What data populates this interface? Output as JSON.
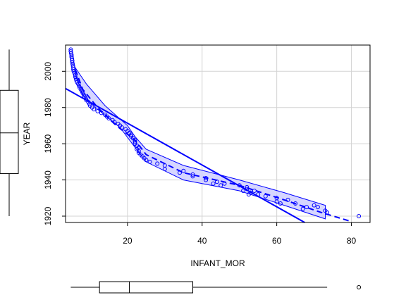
{
  "chart_data": {
    "type": "scatter",
    "title": "",
    "xlabel": "INFANT_MOR",
    "ylabel": "YEAR",
    "xlim": [
      3.4,
      85
    ],
    "ylim": [
      1916.5,
      2014.5
    ],
    "xticks": [
      20,
      40,
      60,
      80
    ],
    "yticks": [
      1920,
      1940,
      1960,
      1980,
      2000
    ],
    "grid": true,
    "colors": {
      "series": "#0000ff",
      "band_fill": "#ccccff",
      "grid": "#d3d3d3",
      "boxplot": "#000000"
    },
    "points": [
      [
        82,
        1920
      ],
      [
        73.5,
        1922
      ],
      [
        73,
        1923
      ],
      [
        70,
        1926
      ],
      [
        71,
        1925
      ],
      [
        68,
        1925
      ],
      [
        67,
        1924
      ],
      [
        65,
        1927
      ],
      [
        63,
        1929
      ],
      [
        61,
        1927
      ],
      [
        60,
        1928
      ],
      [
        60,
        1930
      ],
      [
        57,
        1931
      ],
      [
        55,
        1932
      ],
      [
        54,
        1934
      ],
      [
        53,
        1933
      ],
      [
        52.5,
        1932
      ],
      [
        52,
        1935
      ],
      [
        52,
        1936
      ],
      [
        51,
        1934
      ],
      [
        50,
        1937
      ],
      [
        46,
        1938
      ],
      [
        45,
        1937
      ],
      [
        44,
        1939
      ],
      [
        43,
        1938
      ],
      [
        41,
        1940
      ],
      [
        41,
        1941
      ],
      [
        37.5,
        1943
      ],
      [
        37.5,
        1942
      ],
      [
        35,
        1945
      ],
      [
        34,
        1944
      ],
      [
        30,
        1946
      ],
      [
        30,
        1948
      ],
      [
        28,
        1949
      ],
      [
        26,
        1950
      ],
      [
        25,
        1951
      ],
      [
        24.5,
        1952
      ],
      [
        24,
        1953
      ],
      [
        23.5,
        1954
      ],
      [
        23,
        1956
      ],
      [
        23,
        1955
      ],
      [
        22.5,
        1957
      ],
      [
        23,
        1958
      ],
      [
        22.5,
        1959
      ],
      [
        22,
        1960
      ],
      [
        22,
        1961
      ],
      [
        22,
        1962
      ],
      [
        21.5,
        1963
      ],
      [
        21,
        1964
      ],
      [
        21,
        1965
      ],
      [
        20.5,
        1966
      ],
      [
        20,
        1967
      ],
      [
        19.5,
        1968
      ],
      [
        18.5,
        1969
      ],
      [
        18,
        1970
      ],
      [
        17.5,
        1971
      ],
      [
        16.5,
        1972
      ],
      [
        16,
        1973
      ],
      [
        15,
        1974
      ],
      [
        14.5,
        1975
      ],
      [
        14,
        1976
      ],
      [
        13,
        1977
      ],
      [
        12,
        1978
      ],
      [
        11,
        1979
      ],
      [
        10.5,
        1980
      ],
      [
        10,
        1981
      ],
      [
        9.8,
        1982
      ],
      [
        9.5,
        1983
      ],
      [
        9,
        1984
      ],
      [
        8.8,
        1985
      ],
      [
        8.5,
        1986
      ],
      [
        8.3,
        1987
      ],
      [
        8,
        1988
      ],
      [
        7.8,
        1989
      ],
      [
        7.5,
        1990
      ],
      [
        7.2,
        1991
      ],
      [
        7,
        1992
      ],
      [
        6.8,
        1993
      ],
      [
        6.5,
        1994
      ],
      [
        6.3,
        1995
      ],
      [
        6.2,
        1996
      ],
      [
        6,
        1997
      ],
      [
        6,
        1998
      ],
      [
        5.8,
        1999
      ],
      [
        5.6,
        2000
      ],
      [
        5.5,
        2001
      ],
      [
        5.5,
        2002
      ],
      [
        5.4,
        2003
      ],
      [
        5.3,
        2004
      ],
      [
        5.2,
        2005
      ],
      [
        5.2,
        2006
      ],
      [
        5.1,
        2007
      ],
      [
        5,
        2008
      ],
      [
        5,
        2009
      ],
      [
        4.9,
        2010
      ],
      [
        4.8,
        2011
      ],
      [
        4.8,
        2012
      ]
    ],
    "regression_line": {
      "x1": 3.4,
      "y1": 1990.5,
      "x2": 67.5,
      "y2": 1916.5
    },
    "smooth_line": [
      [
        6,
        2001
      ],
      [
        8,
        1990
      ],
      [
        12,
        1980
      ],
      [
        17,
        1970
      ],
      [
        22,
        1962
      ],
      [
        25,
        1954
      ],
      [
        35,
        1944
      ],
      [
        50,
        1937
      ],
      [
        62,
        1929
      ],
      [
        72,
        1922
      ],
      [
        80,
        1917
      ]
    ],
    "band_upper": [
      [
        6,
        2002
      ],
      [
        9,
        1993
      ],
      [
        14,
        1981
      ],
      [
        20,
        1970
      ],
      [
        22,
        1964
      ],
      [
        25,
        1957
      ],
      [
        35,
        1948
      ],
      [
        50,
        1940
      ],
      [
        62,
        1933
      ],
      [
        73,
        1926
      ]
    ],
    "band_lower": [
      [
        73,
        1918.5
      ],
      [
        62,
        1926
      ],
      [
        50,
        1934
      ],
      [
        35,
        1940
      ],
      [
        25,
        1950
      ],
      [
        22,
        1958
      ],
      [
        18,
        1969
      ],
      [
        12,
        1979
      ],
      [
        8,
        1987
      ],
      [
        6,
        1998
      ]
    ],
    "x_boxplot": {
      "whisker_low": 4.8,
      "q1": 12.5,
      "median": 20.5,
      "q3": 37.5,
      "whisker_high": 73.5,
      "outliers": [
        82
      ]
    },
    "y_boxplot": {
      "whisker_low": 1920,
      "q1": 1943.5,
      "median": 1966,
      "q3": 1989.5,
      "whisker_high": 2012
    }
  }
}
